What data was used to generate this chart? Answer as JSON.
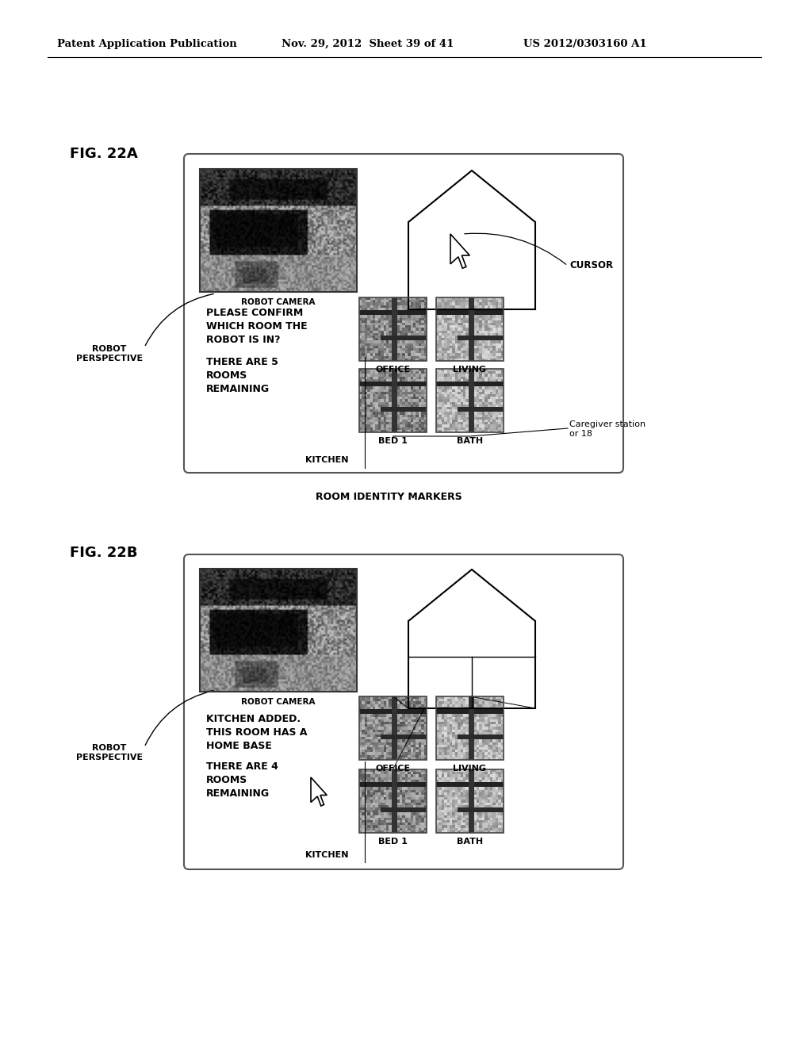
{
  "bg_color": "#ffffff",
  "header_left": "Patent Application Publication",
  "header_mid": "Nov. 29, 2012  Sheet 39 of 41",
  "header_right": "US 2012/0303160 A1",
  "fig_22a_label": "FIG. 22A",
  "fig_22b_label": "FIG. 22B",
  "robot_camera_label": "ROBOT CAMERA",
  "robot_perspective_label": "ROBOT\nPERSPECTIVE",
  "cursor_label": "CURSOR",
  "caregiver_label": "Caregiver station\nor 18",
  "room_identity_label": "ROOM IDENTITY MARKERS",
  "fig22a_text1": "PLEASE CONFIRM\nWHICH ROOM THE\nROBOT IS IN?",
  "fig22a_text2": "THERE ARE 5\nROOMS\nREMAINING",
  "fig22b_text1": "KITCHEN ADDED.\nTHIS ROOM HAS A\nHOME BASE",
  "fig22b_text2": "THERE ARE 4\nROOMS\nREMAINING",
  "room_labels": [
    "OFFICE",
    "LIVING",
    "KITCHEN",
    "BED 1",
    "BATH"
  ]
}
